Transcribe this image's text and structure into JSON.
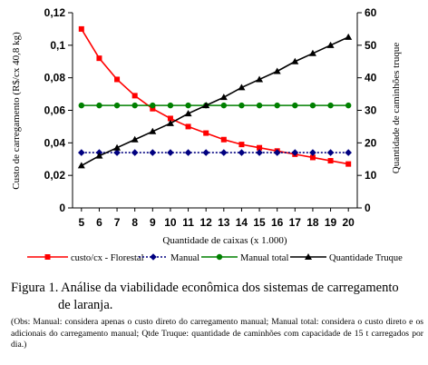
{
  "chart_data": {
    "type": "line",
    "x": [
      5,
      6,
      7,
      8,
      9,
      10,
      11,
      12,
      13,
      14,
      15,
      16,
      17,
      18,
      19,
      20
    ],
    "xlabel": "Quantidade de caixas (x 1.000)",
    "ylabel_left": "Custo de carregamento (R$/cx 40,8 kg)",
    "ylabel_right": "Quantidade de caminhões truque",
    "ylim_left": [
      0,
      0.12
    ],
    "ylim_right": [
      0,
      60
    ],
    "yticks_left": [
      "0",
      "0,02",
      "0,04",
      "0,06",
      "0,08",
      "0,1",
      "0,12"
    ],
    "yticks_right": [
      "0",
      "10",
      "20",
      "30",
      "40",
      "50",
      "60"
    ],
    "legend_position": "bottom",
    "series": [
      {
        "name": "custo/cx - Florestal",
        "axis": "left",
        "color": "#ff0000",
        "marker": "square",
        "values": [
          0.11,
          0.092,
          0.079,
          0.069,
          0.061,
          0.055,
          0.05,
          0.046,
          0.042,
          0.039,
          0.037,
          0.035,
          0.033,
          0.031,
          0.029,
          0.027
        ]
      },
      {
        "name": "Manual",
        "axis": "left",
        "color": "#000080",
        "marker": "diamond",
        "dashed": true,
        "values": [
          0.034,
          0.034,
          0.034,
          0.034,
          0.034,
          0.034,
          0.034,
          0.034,
          0.034,
          0.034,
          0.034,
          0.034,
          0.034,
          0.034,
          0.034,
          0.034
        ]
      },
      {
        "name": "Manual total",
        "axis": "left",
        "color": "#008000",
        "marker": "circle",
        "values": [
          0.063,
          0.063,
          0.063,
          0.063,
          0.063,
          0.063,
          0.063,
          0.063,
          0.063,
          0.063,
          0.063,
          0.063,
          0.063,
          0.063,
          0.063,
          0.063
        ]
      },
      {
        "name": "Quantidade Truque",
        "axis": "right",
        "color": "#000000",
        "marker": "triangle",
        "values": [
          13,
          16,
          18.5,
          21,
          23.5,
          26,
          29,
          31.5,
          34,
          37,
          39.5,
          42,
          45,
          47.5,
          50,
          52.5
        ]
      }
    ]
  },
  "caption": {
    "line1": "Figura 1. Análise da viabilidade econômica dos sistemas de carregamento",
    "line2": "de laranja."
  },
  "note": "(Obs: Manual: considera apenas o custo direto do carregamento manual; Manual total: considera o custo direto e os adicionais do carregamento manual; Qtde Truque: quantidade de caminhões com capacidade de 15 t carregados por dia.)"
}
